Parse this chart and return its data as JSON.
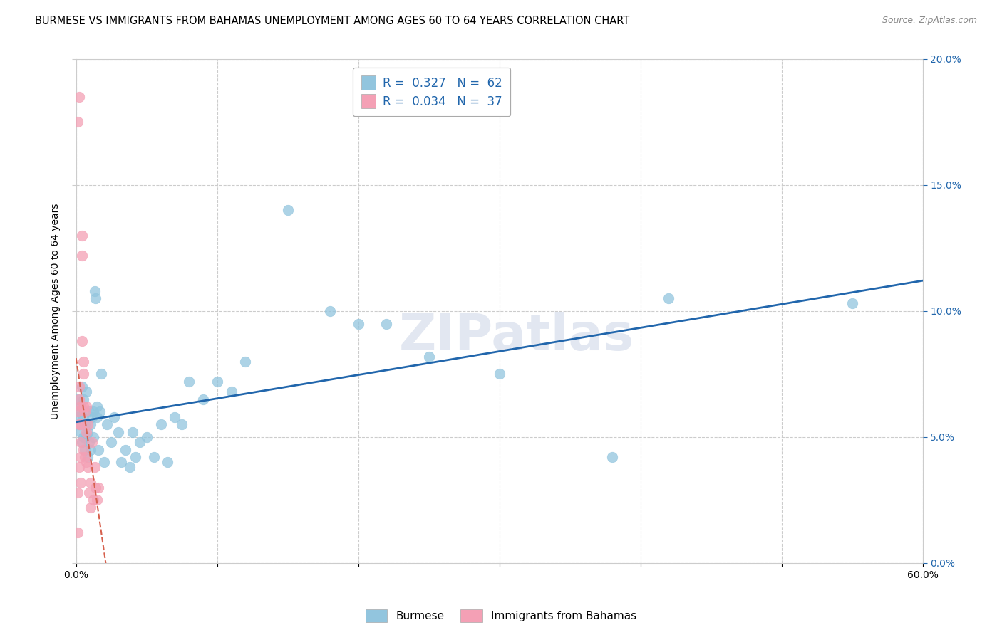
{
  "title": "BURMESE VS IMMIGRANTS FROM BAHAMAS UNEMPLOYMENT AMONG AGES 60 TO 64 YEARS CORRELATION CHART",
  "source": "Source: ZipAtlas.com",
  "ylabel": "Unemployment Among Ages 60 to 64 years",
  "xlim": [
    0.0,
    0.6
  ],
  "ylim": [
    0.0,
    0.2
  ],
  "xlabel_ticks_labels": [
    "0.0%",
    "60.0%"
  ],
  "xlabel_ticks_vals": [
    0.0,
    0.6
  ],
  "ylabel_ticks_labels": [
    "0.0%",
    "5.0%",
    "10.0%",
    "15.0%",
    "20.0%"
  ],
  "ylabel_ticks_vals": [
    0.0,
    0.05,
    0.1,
    0.15,
    0.2
  ],
  "burmese_R": 0.327,
  "burmese_N": 62,
  "bahamas_R": 0.034,
  "bahamas_N": 37,
  "burmese_color": "#92c5de",
  "bahamas_color": "#f4a0b5",
  "burmese_line_color": "#2166ac",
  "bahamas_line_color": "#d6604d",
  "legend_label_burmese": "Burmese",
  "legend_label_bahamas": "Immigrants from Bahamas",
  "burmese_x": [
    0.001,
    0.001,
    0.002,
    0.002,
    0.003,
    0.003,
    0.004,
    0.004,
    0.005,
    0.005,
    0.005,
    0.006,
    0.006,
    0.007,
    0.007,
    0.008,
    0.008,
    0.009,
    0.009,
    0.01,
    0.01,
    0.011,
    0.012,
    0.012,
    0.013,
    0.014,
    0.015,
    0.015,
    0.016,
    0.017,
    0.018,
    0.02,
    0.022,
    0.025,
    0.027,
    0.03,
    0.032,
    0.035,
    0.038,
    0.04,
    0.042,
    0.045,
    0.05,
    0.055,
    0.06,
    0.065,
    0.07,
    0.075,
    0.08,
    0.09,
    0.1,
    0.11,
    0.12,
    0.15,
    0.18,
    0.2,
    0.22,
    0.25,
    0.3,
    0.38,
    0.42,
    0.55
  ],
  "burmese_y": [
    0.065,
    0.058,
    0.06,
    0.055,
    0.062,
    0.052,
    0.07,
    0.048,
    0.058,
    0.065,
    0.05,
    0.055,
    0.045,
    0.068,
    0.05,
    0.052,
    0.042,
    0.06,
    0.048,
    0.055,
    0.045,
    0.058,
    0.06,
    0.05,
    0.108,
    0.105,
    0.062,
    0.058,
    0.045,
    0.06,
    0.075,
    0.04,
    0.055,
    0.048,
    0.058,
    0.052,
    0.04,
    0.045,
    0.038,
    0.052,
    0.042,
    0.048,
    0.05,
    0.042,
    0.055,
    0.04,
    0.058,
    0.055,
    0.072,
    0.065,
    0.072,
    0.068,
    0.08,
    0.14,
    0.1,
    0.095,
    0.095,
    0.082,
    0.075,
    0.042,
    0.105,
    0.103
  ],
  "bahamas_x": [
    0.001,
    0.001,
    0.001,
    0.001,
    0.002,
    0.002,
    0.002,
    0.002,
    0.002,
    0.003,
    0.003,
    0.003,
    0.003,
    0.003,
    0.004,
    0.004,
    0.004,
    0.005,
    0.005,
    0.005,
    0.005,
    0.006,
    0.006,
    0.007,
    0.007,
    0.007,
    0.008,
    0.008,
    0.009,
    0.01,
    0.01,
    0.011,
    0.012,
    0.013,
    0.014,
    0.015,
    0.016
  ],
  "bahamas_y": [
    0.175,
    0.06,
    0.028,
    0.012,
    0.185,
    0.07,
    0.065,
    0.055,
    0.038,
    0.062,
    0.055,
    0.048,
    0.042,
    0.032,
    0.13,
    0.122,
    0.088,
    0.08,
    0.075,
    0.062,
    0.045,
    0.06,
    0.042,
    0.062,
    0.052,
    0.04,
    0.055,
    0.038,
    0.028,
    0.032,
    0.022,
    0.048,
    0.025,
    0.038,
    0.03,
    0.025,
    0.03
  ],
  "watermark": "ZIPatlas",
  "grid_color": "#cccccc",
  "background_color": "#ffffff",
  "title_fontsize": 10.5,
  "axis_label_fontsize": 10,
  "tick_fontsize": 10,
  "legend_fontsize": 12,
  "source_fontsize": 9,
  "right_tick_color": "#2166ac"
}
